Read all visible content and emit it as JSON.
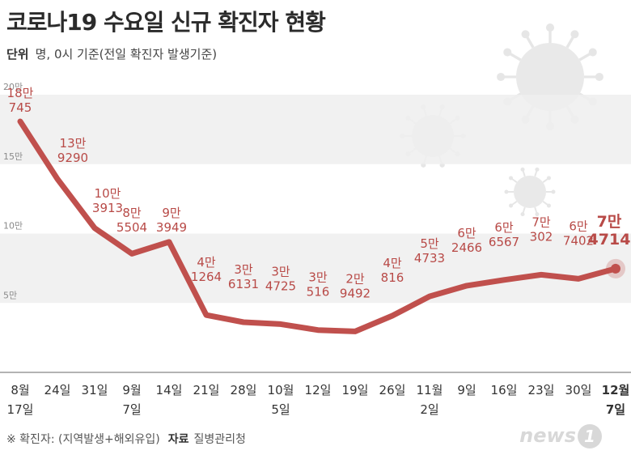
{
  "title": "코로나19 수요일 신규 확진자 현황",
  "unit": {
    "label": "단위",
    "text": "명, 0시 기준(전일 확진자 발생기준)"
  },
  "footnote": {
    "note": "※ 확진자: (지역발생+해외유입)",
    "source_label": "자료",
    "source": "질병관리청"
  },
  "logo": {
    "text": "news",
    "mark": "1"
  },
  "colors": {
    "line": "#c0504d",
    "label": "#b84a47",
    "band": "#efefef",
    "axis_text": "#333333"
  },
  "chart_data": {
    "type": "line",
    "title": "코로나19 수요일 신규 확진자 현황",
    "ylim": [
      0,
      200000
    ],
    "yticks": [
      {
        "value": 200000,
        "label": "20만"
      },
      {
        "value": 150000,
        "label": "15만"
      },
      {
        "value": 100000,
        "label": "10만"
      },
      {
        "value": 50000,
        "label": "5만"
      }
    ],
    "categories": [
      [
        "8월",
        "17일"
      ],
      [
        "24일"
      ],
      [
        "31일"
      ],
      [
        "9월",
        "7일"
      ],
      [
        "14일"
      ],
      [
        "21일"
      ],
      [
        "28일"
      ],
      [
        "10월",
        "5일"
      ],
      [
        "12일"
      ],
      [
        "19일"
      ],
      [
        "26일"
      ],
      [
        "11월",
        "2일"
      ],
      [
        "9일"
      ],
      [
        "16일"
      ],
      [
        "23일"
      ],
      [
        "30일"
      ],
      [
        "12월",
        "7일"
      ]
    ],
    "values": [
      180745,
      139290,
      103913,
      85504,
      93949,
      41264,
      36131,
      34725,
      30516,
      29492,
      40816,
      54733,
      62466,
      66567,
      70302,
      67402,
      74714
    ],
    "labels": [
      [
        "18만",
        "745"
      ],
      [
        "13만",
        "9290"
      ],
      [
        "10만",
        "3913"
      ],
      [
        "8만",
        "5504"
      ],
      [
        "9만",
        "3949"
      ],
      [
        "4만",
        "1264"
      ],
      [
        "3만",
        "6131"
      ],
      [
        "3만",
        "4725"
      ],
      [
        "3만",
        "516"
      ],
      [
        "2만",
        "9492"
      ],
      [
        "4만",
        "816"
      ],
      [
        "5만",
        "4733"
      ],
      [
        "6만",
        "2466"
      ],
      [
        "6만",
        "6567"
      ],
      [
        "7만",
        "302"
      ],
      [
        "6만",
        "7402"
      ],
      [
        "7만",
        "4714"
      ]
    ],
    "highlight_index": 16
  }
}
